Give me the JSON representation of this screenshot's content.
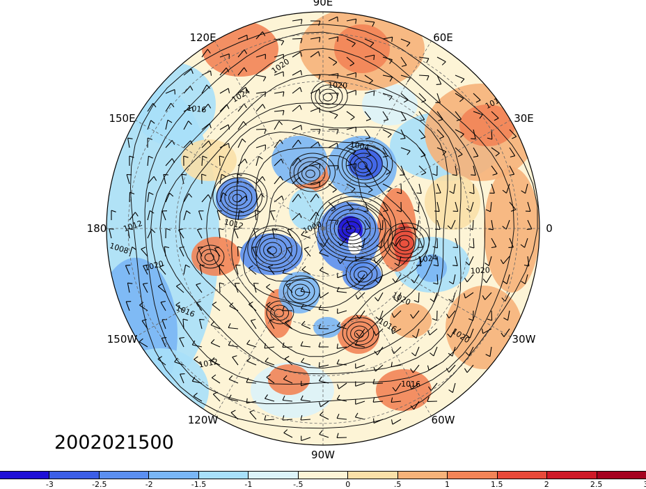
{
  "map": {
    "date_label": "2002021500",
    "longitude_labels": [
      "90E",
      "60E",
      "30E",
      "0",
      "30W",
      "60W",
      "90W",
      "120W",
      "150W",
      "180",
      "150E",
      "120E"
    ],
    "isobar_labels": [
      "1020",
      "1020",
      "1024",
      "1016",
      "1012",
      "1004",
      "1000",
      "1012",
      "1012",
      "1008",
      "1020",
      "1016",
      "1012",
      "1020",
      "1024",
      "1016",
      "1020",
      "1020",
      "1016"
    ]
  },
  "colorbar": {
    "colors": [
      "#1f10d6",
      "#3c5ee6",
      "#5b8ff0",
      "#7ab6f5",
      "#a8e0fa",
      "#dcf3f9",
      "#fdf4d6",
      "#fae0a8",
      "#f6b27a",
      "#f28457",
      "#e84a3a",
      "#cf1a28",
      "#a5021f"
    ],
    "tick_labels": [
      "-3",
      "-2.5",
      "-2",
      "-1.5",
      "-1",
      "-.5",
      "0",
      ".5",
      "1",
      "1.5",
      "2",
      "2.5",
      "3"
    ]
  }
}
